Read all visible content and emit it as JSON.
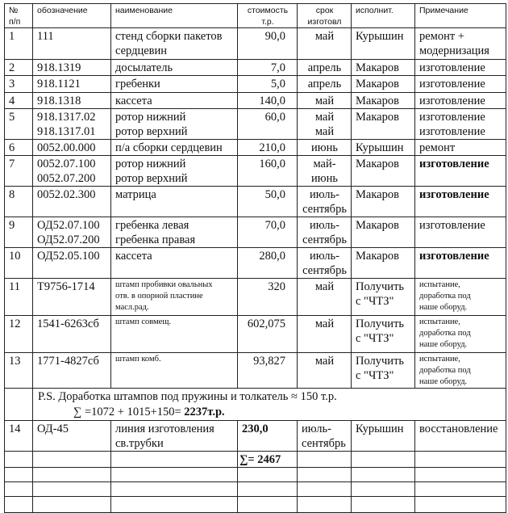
{
  "headers": [
    "№\nп/п",
    "обозначение",
    "наименование",
    "стоимость\nт.р.",
    "срок\nизготовл",
    "исполнит.",
    "Примечание"
  ],
  "rows": [
    [
      "1",
      "111",
      "стенд сборки пакетов\nсердцевин",
      "90,0",
      "май",
      "Курышин",
      "ремонт +\nмодернизация"
    ],
    [
      "2",
      "918.1319",
      "досылатель",
      "7,0",
      "апрель",
      "Макаров",
      "изготовление"
    ],
    [
      "3",
      "918.1121",
      "гребенки",
      "5,0",
      "апрель",
      "Макаров",
      "изготовление"
    ],
    [
      "4",
      "918.1318",
      "кассета",
      "140,0",
      "май",
      "Макаров",
      "изготовление"
    ],
    [
      "5",
      "918.1317.02\n918.1317.01",
      "ротор нижний\nротор верхний",
      "60,0",
      "май\nмай",
      "Макаров",
      "изготовление\nизготовление"
    ],
    [
      "6",
      "0052.00.000",
      "п/а сборки сердцевин",
      "210,0",
      "июнь",
      "Курышин",
      "ремонт"
    ],
    [
      "7",
      "0052.07.100\n0052.07.200",
      "ротор нижний\nротор верхний",
      "160,0",
      "май-\nиюнь",
      "Макаров",
      "изготовление"
    ],
    [
      "8",
      "0052.02.300",
      "матрица",
      "50,0",
      "июль-\nсентябрь",
      "Макаров",
      "изготовление"
    ],
    [
      "9",
      "ОД52.07.100\nОД52.07.200",
      "гребенка левая\nгребенка правая",
      "70,0",
      "июль-\nсентябрь",
      "Макаров",
      "изготовление"
    ],
    [
      "10",
      "ОД52.05.100",
      "кассета",
      "280,0",
      "июль-\nсентябрь",
      "Макаров",
      "изготовление"
    ],
    [
      "11",
      "Т9756-1714",
      "штамп пробивки овальных\nотв. в опорной пластине\nмасл.рад.",
      "320",
      "май",
      "Получить\nс \"ЧТЗ\"",
      "испытание,\nдоработка под\nнаше оборуд."
    ],
    [
      "12",
      "1541-6263сб",
      "штамп совмещ.",
      "602,075",
      "май",
      "Получить\nс \"ЧТЗ\"",
      "испытание,\nдоработка под\nнаше оборуд."
    ],
    [
      "13",
      "1771-4827сб",
      "штамп комб.",
      "93,827",
      "май",
      "Получить\nс \"ЧТЗ\"",
      "испытание,\nдоработка под\nнаше оборуд."
    ]
  ],
  "ps": {
    "line1": "P.S. Доработка штампов под пружины и толкатель ≈ 150 т.р.",
    "line2_prefix": "∑ =1072 + 1015+150= ",
    "line2_total": "2237т.р."
  },
  "row14": [
    "14",
    "ОД-45",
    "линия изготовления\nсв.трубки",
    "230,0",
    "июль-\nсентябрь",
    "Курышин",
    "восстановление"
  ],
  "total": "∑= 2467"
}
